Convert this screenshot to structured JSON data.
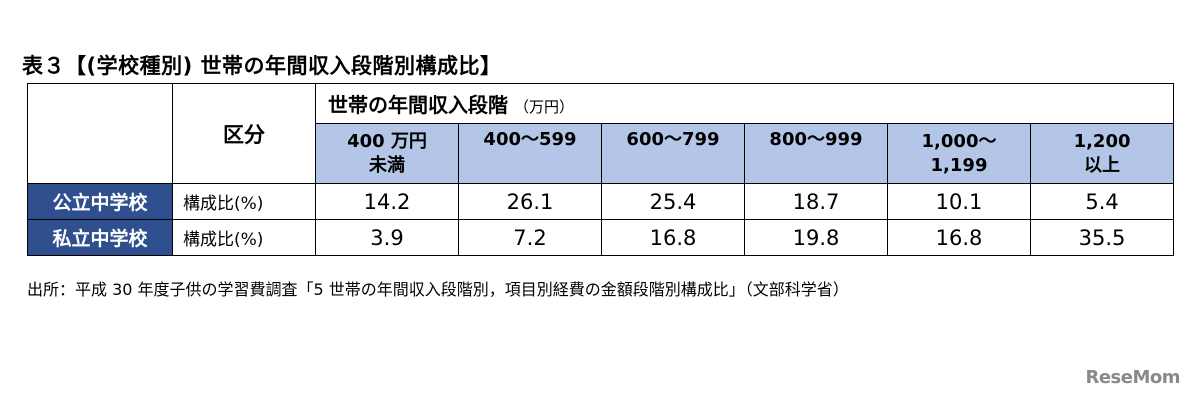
{
  "title": "表３【(学校種別) 世帯の年間収入段階別構成比】",
  "table": {
    "kubun_label": "区分",
    "group_header": "世帯の年間収入段階",
    "group_unit": "（万円）",
    "brackets": [
      [
        "400 万円",
        "未満"
      ],
      [
        "400～599",
        ""
      ],
      [
        "600～799",
        ""
      ],
      [
        "800～999",
        ""
      ],
      [
        "1,000～",
        "1,199"
      ],
      [
        "1,200",
        "以上"
      ]
    ],
    "rows": [
      {
        "label": "公立中学校",
        "metric": "構成比(%)",
        "values": [
          "14.2",
          "26.1",
          "25.4",
          "18.7",
          "10.1",
          "5.4"
        ]
      },
      {
        "label": "私立中学校",
        "metric": "構成比(%)",
        "values": [
          "3.9",
          "7.2",
          "16.8",
          "19.8",
          "16.8",
          "35.5"
        ]
      }
    ]
  },
  "source": "出所：平成 30 年度子供の学習費調査「5 世帯の年間収入段階別，項目別経費の金額段階別構成比」（文部科学省）",
  "logo": "ReseMom",
  "colors": {
    "header_fill": "#b4c6e7",
    "row_label_fill": "#2f4f8f",
    "row_label_text": "#ffffff"
  }
}
